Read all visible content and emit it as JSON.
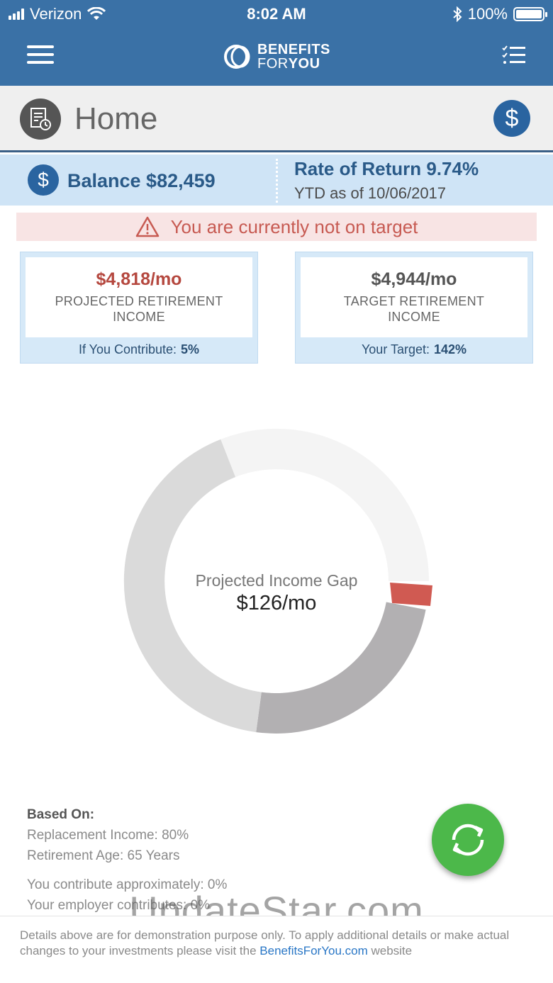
{
  "status_bar": {
    "carrier": "Verizon",
    "time": "8:02 AM",
    "battery": "100%"
  },
  "nav": {
    "logo_line1": "BENEFITS",
    "logo_for": "FOR",
    "logo_you": "YOU"
  },
  "header": {
    "title": "Home",
    "dollar_symbol": "$"
  },
  "balance": {
    "symbol": "$",
    "text": "Balance $82,459",
    "rate_of_return": "Rate of Return 9.74%",
    "ytd": "YTD as of 10/06/2017"
  },
  "alert": {
    "message": "You are currently not on target"
  },
  "cards": {
    "projected": {
      "amount": "$4,818/mo",
      "label_line1": "PROJECTED RETIREMENT",
      "label_line2": "INCOME",
      "foot_label": "If You Contribute:",
      "foot_value": "5%"
    },
    "target": {
      "amount": "$4,944/mo",
      "label_line1": "TARGET RETIREMENT",
      "label_line2": "INCOME",
      "foot_label": "Your Target:",
      "foot_value": "142%"
    }
  },
  "gap": {
    "label": "Projected Income Gap",
    "value": "$126/mo"
  },
  "based_on": {
    "heading": "Based On:",
    "replacement": "Replacement Income: 80%",
    "retirement_age": "Retirement Age: 65 Years",
    "you_contribute": "You contribute approximately: 0%",
    "employer_contributes": "Your employer contributes: 0%"
  },
  "watermark": "UpdateStar.com",
  "footer": {
    "text_before": "Details above are for demonstration purpose only. To apply additional details or make actual changes to your investments please visit the ",
    "link": "BenefitsForYou.com",
    "text_after": " website"
  },
  "colors": {
    "nav_bg": "#3a71a6",
    "accent_blue": "#2a64a0",
    "alert_red": "#c75a52",
    "gap_red": "#d05a52",
    "refresh_green": "#4cb84a"
  },
  "icons": [
    "menu-icon",
    "logo-ring-icon",
    "checklist-icon",
    "document-clock-icon",
    "dollar-icon",
    "warning-icon",
    "refresh-icon",
    "wifi-icon",
    "bluetooth-icon",
    "battery-icon",
    "signal-icon"
  ]
}
